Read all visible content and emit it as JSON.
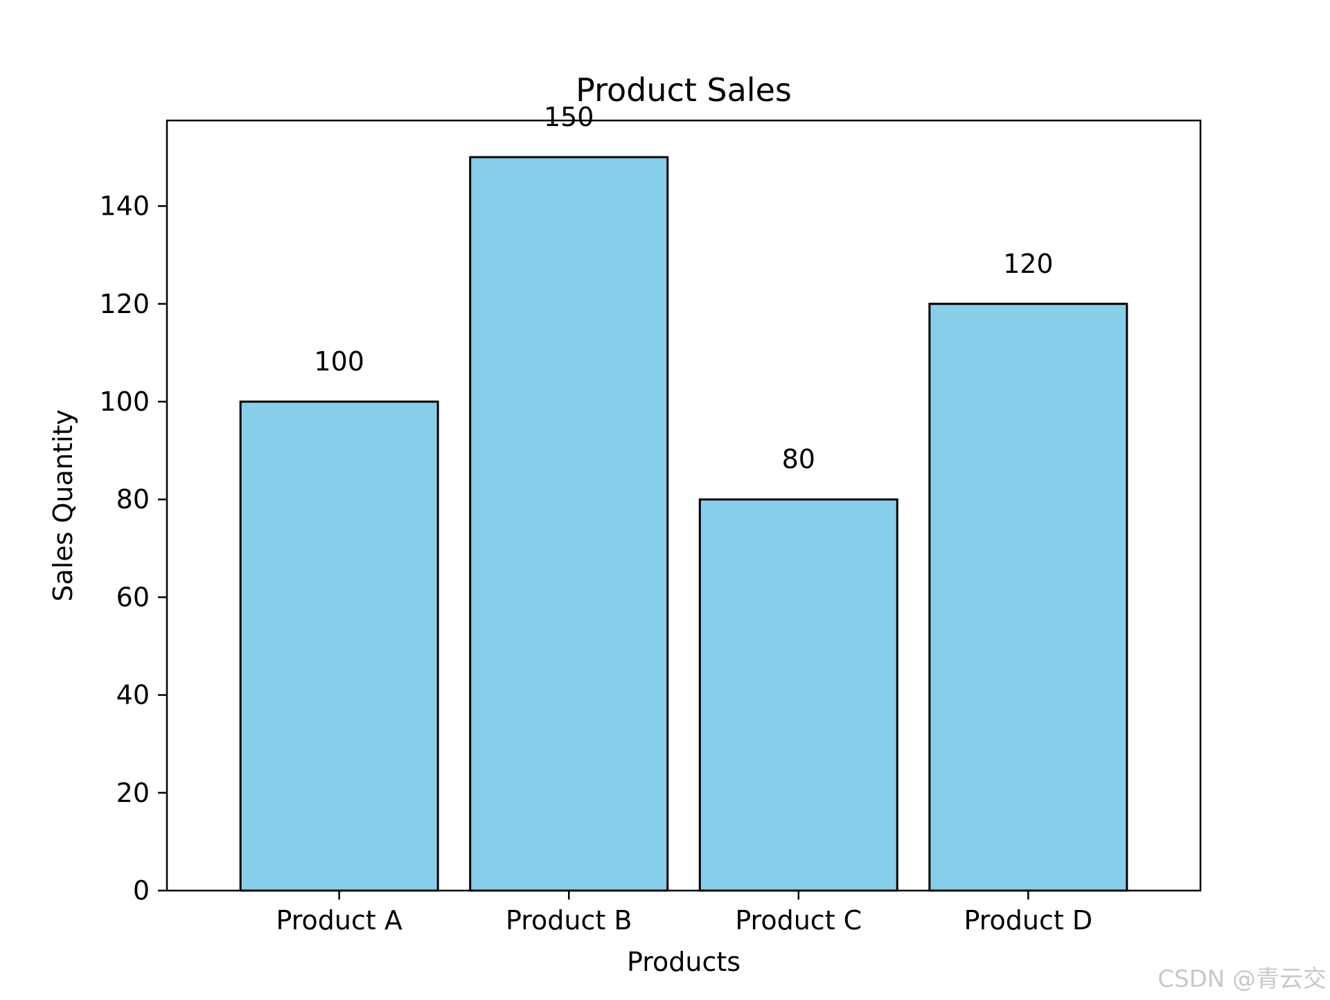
{
  "chart_data": {
    "type": "bar",
    "title": "Product Sales",
    "xlabel": "Products",
    "ylabel": "Sales Quantity",
    "categories": [
      "Product A",
      "Product B",
      "Product C",
      "Product D"
    ],
    "values": [
      100,
      150,
      80,
      120
    ],
    "data_labels": [
      "100",
      "150",
      "80",
      "120"
    ],
    "yticks": [
      0,
      20,
      40,
      60,
      80,
      100,
      120,
      140
    ],
    "ylim": [
      0,
      157.5
    ],
    "grid": false,
    "colors": {
      "bar_fill": "#87CEEB",
      "bar_edge": "#000000",
      "text": "#000000",
      "watermark": "#c8c8c8"
    }
  },
  "watermark": "CSDN @青云交"
}
